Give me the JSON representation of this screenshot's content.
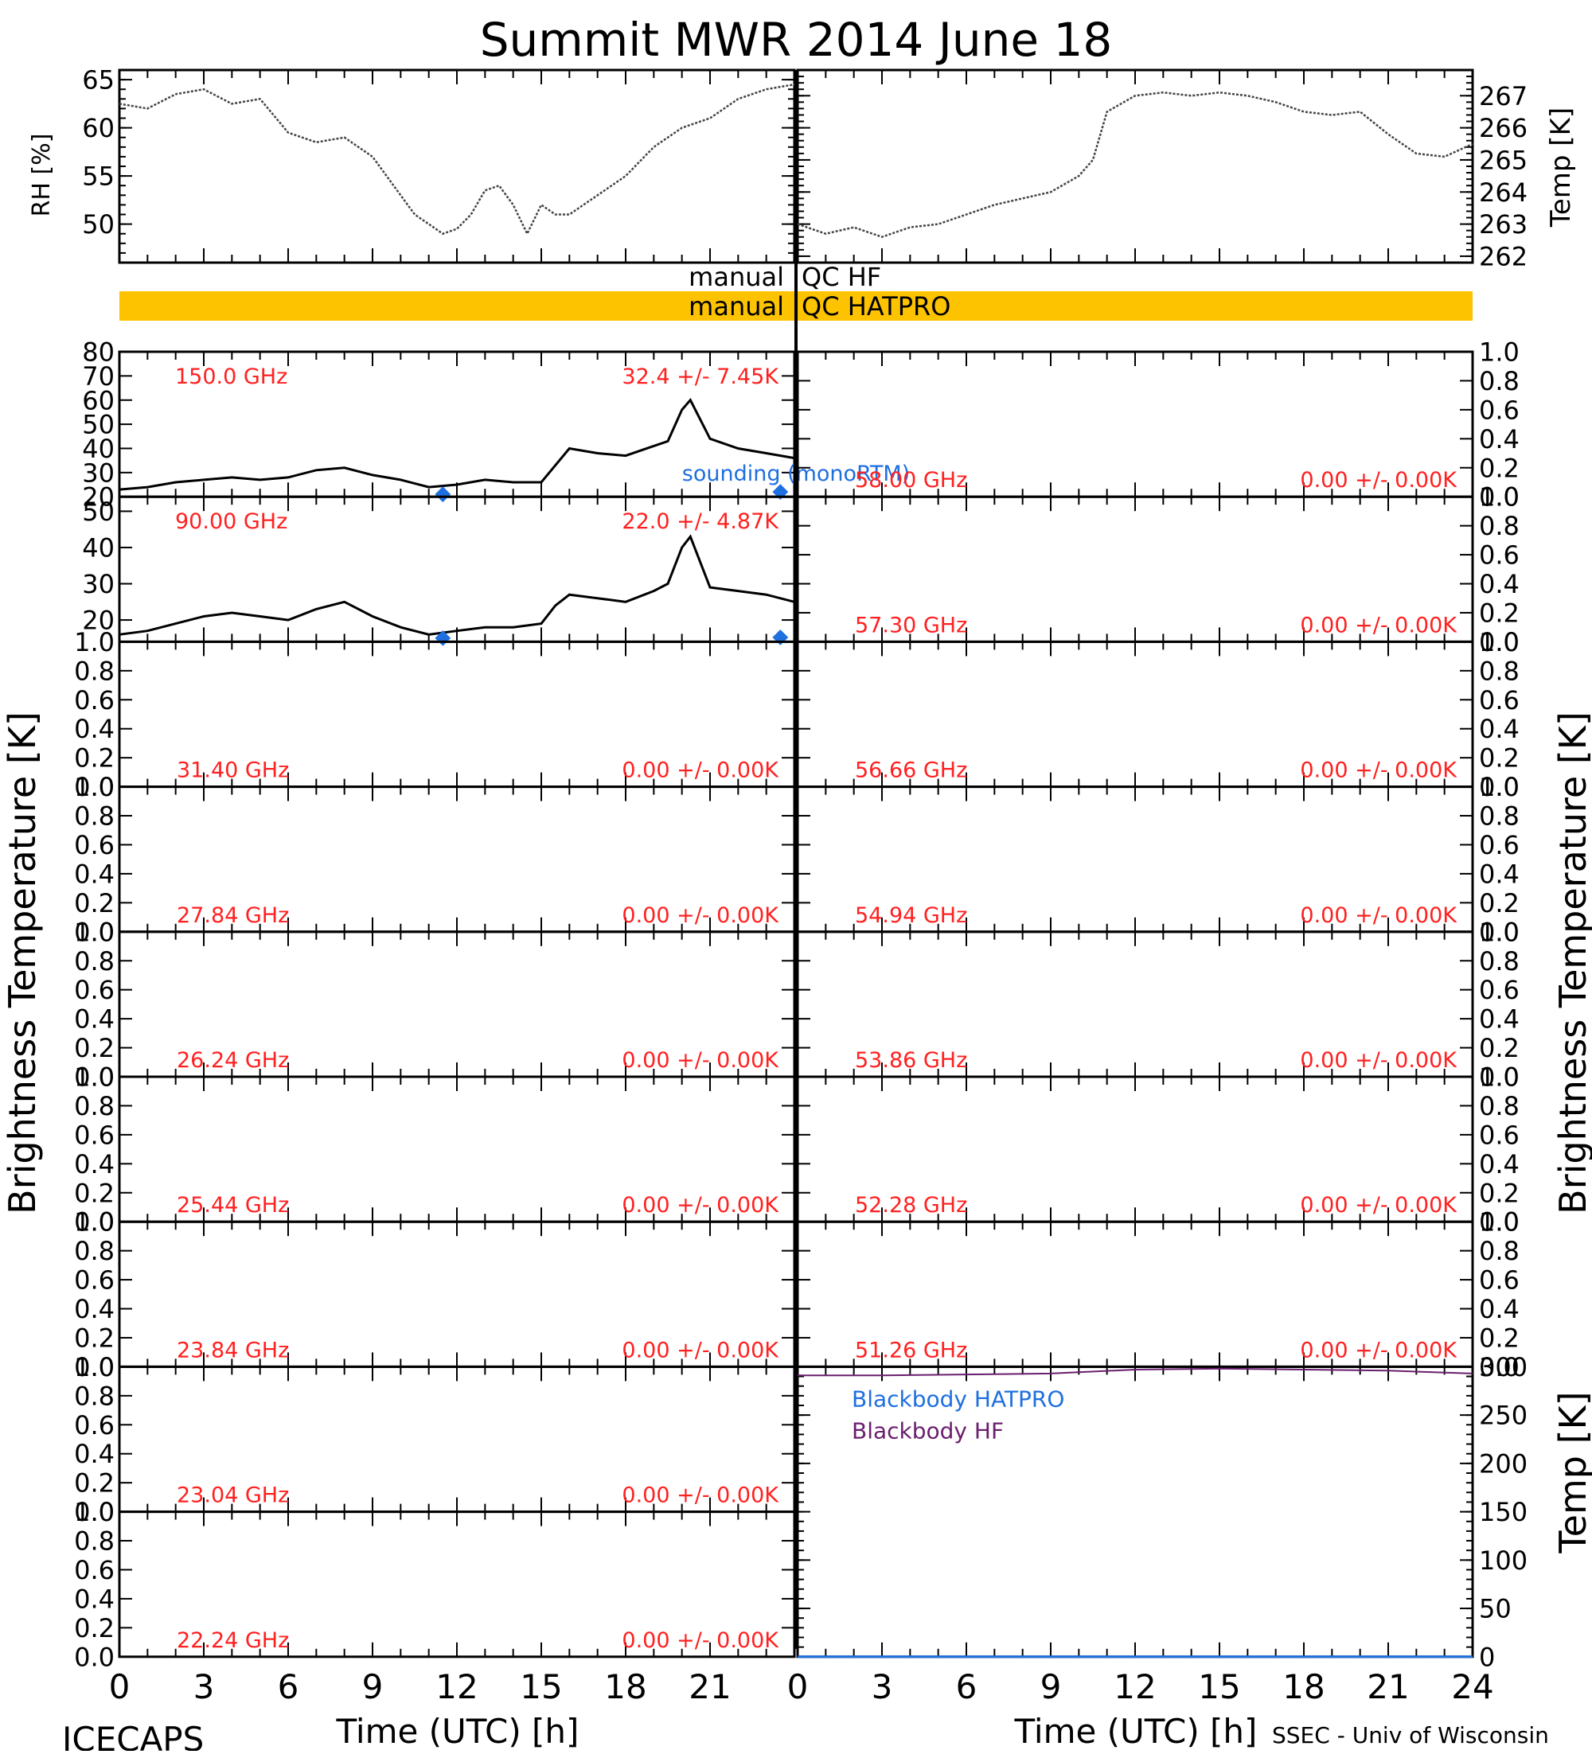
{
  "title": "Summit MWR 2014 June 18",
  "footer": {
    "left": "ICECAPS",
    "right": "SSEC - Univ of Wisconsin",
    "xlabel_left": "Time (UTC) [h]",
    "xlabel_right": "Time (UTC) [h]"
  },
  "colors": {
    "qc_bar": "#FDC300",
    "annotation_red": "#FF2020",
    "sounding_blue": "#1E6FE0",
    "blackbody_hatpro": "#1E6FE0",
    "blackbody_hf": "#6A1E6E",
    "axis": "#000000"
  },
  "qc": {
    "hf_label_left": "manual",
    "hf_label_right": "QC HF",
    "hatpro_label_left": "manual",
    "hatpro_label_right": "QC HATPRO"
  },
  "axes_labels": {
    "rh": "RH [%]",
    "temp_top": "Temp [K]",
    "tb_left": "Brightness Temperature [K]",
    "tb_right": "Brightness Temperature [K]",
    "temp_bottom": "Temp [K]"
  },
  "chart_data": [
    {
      "id": "rh",
      "type": "line",
      "ylabel": "RH [%]",
      "xlim": [
        0,
        24
      ],
      "ylim": [
        46,
        66
      ],
      "yticks": [
        50,
        55,
        60,
        65
      ],
      "x": [
        0,
        1,
        2,
        3,
        4,
        5,
        6,
        7,
        8,
        9,
        10,
        10.5,
        11,
        11.5,
        12,
        12.5,
        13,
        13.5,
        14,
        14.5,
        15,
        15.5,
        16,
        17,
        18,
        19,
        20,
        21,
        22,
        23,
        24
      ],
      "values": [
        62.5,
        62,
        63.5,
        64,
        62.5,
        63,
        59.5,
        58.5,
        59,
        57,
        53,
        51,
        50,
        49,
        49.5,
        51,
        53.5,
        54,
        52,
        49,
        52,
        51,
        51,
        53,
        55,
        58,
        60,
        61,
        63,
        64,
        64.5
      ]
    },
    {
      "id": "temp",
      "type": "line",
      "ylabel": "Temp [K]",
      "xlim": [
        0,
        24
      ],
      "ylim": [
        261.8,
        267.8
      ],
      "yticks": [
        262,
        263,
        264,
        265,
        266,
        267
      ],
      "x": [
        0,
        1,
        2,
        3,
        4,
        5,
        6,
        7,
        8,
        9,
        10,
        10.5,
        11,
        12,
        13,
        14,
        15,
        16,
        17,
        18,
        19,
        20,
        21,
        22,
        23,
        24
      ],
      "values": [
        263,
        262.7,
        262.9,
        262.6,
        262.9,
        263,
        263.3,
        263.6,
        263.8,
        264,
        264.5,
        265,
        266.5,
        267,
        267.1,
        267,
        267.1,
        267,
        266.8,
        266.5,
        266.4,
        266.5,
        265.8,
        265.2,
        265.1,
        265.5
      ]
    },
    {
      "id": "tb_150",
      "type": "line",
      "label": "150.0 GHz",
      "stats": "32.4 +/-  7.45K",
      "ylim": [
        20,
        80
      ],
      "yticks": [
        20,
        30,
        40,
        50,
        60,
        70,
        80
      ],
      "x": [
        0,
        1,
        2,
        3,
        4,
        5,
        6,
        7,
        8,
        9,
        10,
        11,
        12,
        13,
        14,
        15,
        15.5,
        16,
        17,
        18,
        19,
        19.5,
        20,
        20.3,
        21,
        22,
        23,
        24
      ],
      "values": [
        23,
        24,
        26,
        27,
        28,
        27,
        28,
        31,
        32,
        29,
        27,
        24,
        25,
        27,
        26,
        26,
        33,
        40,
        38,
        37,
        41,
        43,
        56,
        60,
        44,
        40,
        38,
        36
      ],
      "sounding_x": [
        11.5,
        23.5
      ],
      "sounding_y": [
        21,
        22
      ],
      "sounding_label": "sounding (monoRTM)"
    },
    {
      "id": "tb_90",
      "type": "line",
      "label": "90.00 GHz",
      "stats": "22.0 +/-  4.87K",
      "ylim": [
        14,
        54
      ],
      "yticks": [
        20,
        30,
        40,
        50
      ],
      "x": [
        0,
        1,
        2,
        3,
        4,
        5,
        6,
        7,
        8,
        9,
        10,
        11,
        12,
        13,
        14,
        15,
        15.5,
        16,
        17,
        18,
        19,
        19.5,
        20,
        20.3,
        21,
        22,
        23,
        24
      ],
      "values": [
        16,
        17,
        19,
        21,
        22,
        21,
        20,
        23,
        25,
        21,
        18,
        16,
        17,
        18,
        18,
        19,
        24,
        27,
        26,
        25,
        28,
        30,
        40,
        43,
        29,
        28,
        27,
        25
      ],
      "sounding_x": [
        11.5,
        23.5
      ],
      "sounding_y": [
        15,
        15.2
      ]
    },
    {
      "id": "tb_empty",
      "type": "line",
      "ylim": [
        0,
        1
      ],
      "yticks": [
        0.0,
        0.2,
        0.4,
        0.6,
        0.8,
        1.0
      ]
    }
  ],
  "empty_panels_left": [
    {
      "label": "31.40 GHz",
      "stats": "0.00 +/-  0.00K"
    },
    {
      "label": "27.84 GHz",
      "stats": "0.00 +/-  0.00K"
    },
    {
      "label": "26.24 GHz",
      "stats": "0.00 +/-  0.00K"
    },
    {
      "label": "25.44 GHz",
      "stats": "0.00 +/-  0.00K"
    },
    {
      "label": "23.84 GHz",
      "stats": "0.00 +/-  0.00K"
    },
    {
      "label": "23.04 GHz",
      "stats": "0.00 +/-  0.00K"
    },
    {
      "label": "22.24 GHz",
      "stats": "0.00 +/-  0.00K"
    }
  ],
  "empty_panels_right": [
    {
      "label": "58.00 GHz",
      "stats": "0.00 +/-  0.00K"
    },
    {
      "label": "57.30 GHz",
      "stats": "0.00 +/-  0.00K"
    },
    {
      "label": "56.66 GHz",
      "stats": "0.00 +/-  0.00K"
    },
    {
      "label": "54.94 GHz",
      "stats": "0.00 +/-  0.00K"
    },
    {
      "label": "53.86 GHz",
      "stats": "0.00 +/-  0.00K"
    },
    {
      "label": "52.28 GHz",
      "stats": "0.00 +/-  0.00K"
    },
    {
      "label": "51.26 GHz",
      "stats": "0.00 +/-  0.00K"
    }
  ],
  "blackbody": {
    "ylim": [
      0,
      300
    ],
    "yticks": [
      0,
      50,
      100,
      150,
      200,
      250,
      300
    ],
    "x": [
      0,
      3,
      6,
      9,
      12,
      15,
      18,
      21,
      24
    ],
    "hf_values": [
      291,
      291,
      292,
      293,
      297,
      298,
      297,
      296,
      293
    ],
    "hatpro_values": [
      0,
      0,
      0,
      0,
      0,
      0,
      0,
      0,
      0
    ],
    "hatpro_label": "Blackbody HATPRO",
    "hf_label": "Blackbody HF"
  },
  "xticks": [
    0,
    3,
    6,
    9,
    12,
    15,
    18,
    21
  ],
  "xticks_right": [
    0,
    3,
    6,
    9,
    12,
    15,
    18,
    21,
    24
  ]
}
